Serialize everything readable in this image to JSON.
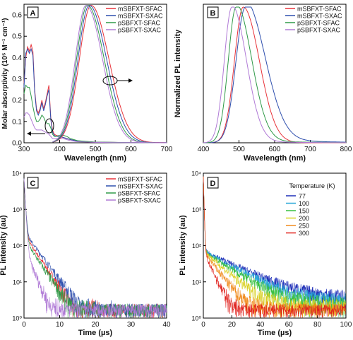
{
  "chart_data": [
    {
      "panel": "A",
      "type": "line",
      "xlabel": "Wavelength (nm)",
      "ylabel": "Molar absorptivity (10⁵ M⁻¹ cm⁻¹)",
      "xlim": [
        300,
        700
      ],
      "ylim": [
        0,
        0.65
      ],
      "xticks": [
        300,
        400,
        500,
        600,
        700
      ],
      "yticks": [
        0.0,
        0.1,
        0.2,
        0.3,
        0.4,
        0.5,
        0.6
      ],
      "legend": "top-right",
      "absorption_series": [
        {
          "name": "mSBFXT-SFAC",
          "color": "#e8333a",
          "x": [
            300,
            305,
            310,
            315,
            320,
            325,
            330,
            335,
            340,
            345,
            350,
            355,
            360,
            365,
            370,
            375,
            380,
            385,
            390,
            400,
            410,
            420,
            430,
            450,
            500,
            550,
            600,
            700
          ],
          "y": [
            0.28,
            0.4,
            0.45,
            0.43,
            0.46,
            0.43,
            0.25,
            0.16,
            0.14,
            0.16,
            0.2,
            0.16,
            0.19,
            0.23,
            0.27,
            0.12,
            0.06,
            0.04,
            0.035,
            0.03,
            0.025,
            0.02,
            0.015,
            0.008,
            0.003,
            0.002,
            0.001,
            0.001
          ]
        },
        {
          "name": "mSBFXT-SXAC",
          "color": "#2e4fae",
          "x": [
            300,
            305,
            310,
            315,
            320,
            325,
            330,
            335,
            340,
            345,
            350,
            355,
            360,
            365,
            370,
            375,
            380,
            385,
            390,
            400,
            410,
            420,
            430,
            450,
            500,
            550,
            600,
            700
          ],
          "y": [
            0.26,
            0.42,
            0.44,
            0.42,
            0.44,
            0.41,
            0.24,
            0.15,
            0.13,
            0.15,
            0.19,
            0.15,
            0.18,
            0.22,
            0.25,
            0.11,
            0.05,
            0.035,
            0.03,
            0.03,
            0.025,
            0.02,
            0.015,
            0.008,
            0.003,
            0.002,
            0.001,
            0.001
          ]
        },
        {
          "name": "pSBFXT-SFAC",
          "color": "#2f9a48",
          "x": [
            300,
            305,
            310,
            315,
            320,
            325,
            330,
            335,
            340,
            345,
            350,
            355,
            360,
            365,
            370,
            375,
            380,
            385,
            390,
            400,
            410,
            420,
            430,
            450,
            500,
            550,
            600,
            700
          ],
          "y": [
            0.23,
            0.27,
            0.26,
            0.26,
            0.22,
            0.17,
            0.13,
            0.1,
            0.1,
            0.11,
            0.13,
            0.12,
            0.1,
            0.09,
            0.09,
            0.07,
            0.04,
            0.03,
            0.03,
            0.035,
            0.035,
            0.03,
            0.02,
            0.01,
            0.003,
            0.002,
            0.001,
            0.001
          ]
        },
        {
          "name": "pSBFXT-SXAC",
          "color": "#b07ad6",
          "x": [
            300,
            305,
            310,
            315,
            320,
            325,
            330,
            335,
            340,
            345,
            350,
            355,
            360,
            365,
            370,
            375,
            380,
            385,
            390,
            400,
            410,
            420,
            430,
            450,
            500,
            550,
            600,
            700
          ],
          "y": [
            0.12,
            0.14,
            0.14,
            0.13,
            0.11,
            0.09,
            0.07,
            0.06,
            0.06,
            0.06,
            0.06,
            0.055,
            0.05,
            0.045,
            0.04,
            0.03,
            0.02,
            0.02,
            0.02,
            0.02,
            0.02,
            0.015,
            0.01,
            0.005,
            0.002,
            0.001,
            0.001,
            0.001
          ]
        }
      ],
      "pl_peaks_nm": [
        488,
        483,
        478,
        474
      ],
      "pl_widths_nm": [
        62,
        60,
        58,
        57
      ]
    },
    {
      "panel": "B",
      "type": "line",
      "xlabel": "Wavelength (nm)",
      "ylabel": "Normalized PL intensity",
      "xlim": [
        400,
        800
      ],
      "xticks": [
        400,
        500,
        600,
        700,
        800
      ],
      "legend": "top-right",
      "series": [
        {
          "name": "mSBFXT-SFAC",
          "color": "#e8333a",
          "peak": 512,
          "width": 58,
          "tail": 0.0
        },
        {
          "name": "mSBFXT-SXAC",
          "color": "#2e4fae",
          "peak": 518,
          "width": 62,
          "tail": 1.0
        },
        {
          "name": "pSBFXT-SFAC",
          "color": "#2f9a48",
          "peak": 492,
          "width": 52,
          "tail": 0.5
        },
        {
          "name": "pSBFXT-SXAC",
          "color": "#b07ad6",
          "peak": 480,
          "width": 50,
          "tail": 0.3
        }
      ]
    },
    {
      "panel": "C",
      "type": "line",
      "xlabel": "Time (µs)",
      "ylabel": "PL intensity (au)",
      "xlim": [
        0,
        40
      ],
      "xticks": [
        0,
        10,
        20,
        30,
        40
      ],
      "ylog": true,
      "ylim": [
        1,
        10000
      ],
      "ytick_labels": [
        "10⁰",
        "10¹",
        "10²",
        "10³",
        "10⁴"
      ],
      "legend": "top-right",
      "series": [
        {
          "name": "mSBFXT-SFAC",
          "color": "#e8333a",
          "prompt_amp": 7000,
          "prompt_tau": 0.25,
          "delayed_amp": 200,
          "delayed_tau": 3.0
        },
        {
          "name": "mSBFXT-SXAC",
          "color": "#2e4fae",
          "prompt_amp": 7000,
          "prompt_tau": 0.25,
          "delayed_amp": 240,
          "delayed_tau": 3.3
        },
        {
          "name": "pSBFXT-SFAC",
          "color": "#2f9a48",
          "prompt_amp": 7000,
          "prompt_tau": 0.25,
          "delayed_amp": 150,
          "delayed_tau": 3.0
        },
        {
          "name": "pSBFXT-SXAC",
          "color": "#b07ad6",
          "prompt_amp": 7000,
          "prompt_tau": 0.25,
          "delayed_amp": 80,
          "delayed_tau": 2.0
        }
      ]
    },
    {
      "panel": "D",
      "type": "line",
      "xlabel": "Time (µs)",
      "ylabel": "PL intensity (au)",
      "xlim": [
        0,
        100
      ],
      "xticks": [
        0,
        20,
        40,
        60,
        80,
        100
      ],
      "ylog": true,
      "ylim": [
        1,
        10000
      ],
      "ytick_labels": [
        "10⁰",
        "10¹",
        "10²",
        "10³",
        "10⁴"
      ],
      "legend_title": "Temperature (K)",
      "legend": "top-right",
      "series": [
        {
          "name": "77",
          "color": "#1f2fb8",
          "delayed_amp": 70,
          "delayed_tau": 22,
          "floor": 3
        },
        {
          "name": "100",
          "color": "#2aa8d8",
          "delayed_amp": 70,
          "delayed_tau": 19,
          "floor": 2.5
        },
        {
          "name": "150",
          "color": "#39c040",
          "delayed_amp": 70,
          "delayed_tau": 16,
          "floor": 2.2
        },
        {
          "name": "200",
          "color": "#d8d020",
          "delayed_amp": 70,
          "delayed_tau": 12,
          "floor": 1.8
        },
        {
          "name": "250",
          "color": "#f08a1c",
          "delayed_amp": 70,
          "delayed_tau": 8,
          "floor": 1.4
        },
        {
          "name": "300",
          "color": "#e0201c",
          "delayed_amp": 70,
          "delayed_tau": 5,
          "floor": 1.2
        }
      ]
    }
  ]
}
